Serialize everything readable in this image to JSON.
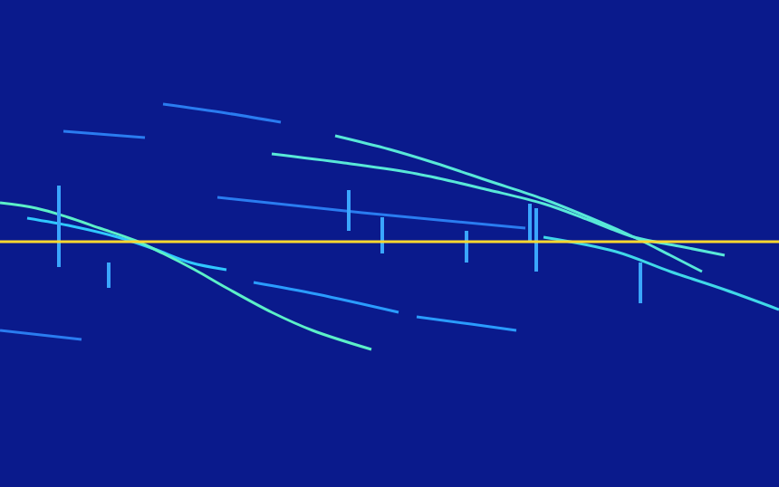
{
  "chart_data": {
    "type": "line",
    "tick_labels": false,
    "grid": false,
    "xlim": [
      0,
      860
    ],
    "ylim": [
      538,
      0
    ],
    "series": [
      {
        "color": "#2a7cf0",
        "x": [
          70,
          160
        ],
        "values": [
          145,
          152
        ]
      },
      {
        "color": "#2a7cf0",
        "x": [
          180,
          250,
          310
        ],
        "values": [
          115,
          125,
          135
        ]
      },
      {
        "color": "#2a7cf0",
        "x": [
          240,
          400,
          580
        ],
        "values": [
          218,
          235,
          252
        ]
      },
      {
        "color": "#2a7cf0",
        "x": [
          0,
          90
        ],
        "values": [
          365,
          375
        ]
      },
      {
        "color": "#30c8ff",
        "x": [
          30,
          80,
          130,
          170,
          210,
          250
        ],
        "values": [
          241,
          250,
          262,
          275,
          290,
          298
        ]
      },
      {
        "color": "#2a9cff",
        "x": [
          280,
          350,
          440
        ],
        "values": [
          312,
          325,
          345
        ]
      },
      {
        "color": "#2a9cff",
        "x": [
          460,
          520,
          570
        ],
        "values": [
          350,
          358,
          365
        ]
      },
      {
        "color": "#58e8d8",
        "x": [
          370,
          430,
          480,
          540,
          600,
          650,
          700,
          740,
          775
        ],
        "values": [
          150,
          165,
          180,
          200,
          220,
          240,
          262,
          282,
          300
        ]
      },
      {
        "color": "#58e8d8",
        "x": [
          300,
          380,
          460,
          540,
          600,
          650,
          700,
          750,
          800
        ],
        "values": [
          170,
          180,
          192,
          210,
          225,
          243,
          262,
          272,
          282
        ]
      },
      {
        "color": "#40d8e8",
        "x": [
          600,
          680,
          740,
          800,
          860
        ],
        "values": [
          262,
          278,
          300,
          320,
          342
        ]
      },
      {
        "color": "#5cf0c8",
        "x": [
          0,
          40,
          75,
          110,
          150,
          180,
          215,
          250,
          300,
          345,
          410
        ],
        "values": [
          224,
          230,
          240,
          252,
          266,
          280,
          298,
          318,
          345,
          365,
          386
        ]
      },
      {
        "color": "#3aa6ff",
        "x": [
          65,
          65
        ],
        "values": [
          205,
          295
        ]
      },
      {
        "color": "#3aa6ff",
        "x": [
          120,
          120
        ],
        "values": [
          290,
          318
        ]
      },
      {
        "color": "#3aa6ff",
        "x": [
          385,
          385
        ],
        "values": [
          210,
          255
        ]
      },
      {
        "color": "#3aa6ff",
        "x": [
          422,
          422
        ],
        "values": [
          240,
          280
        ]
      },
      {
        "color": "#3aa6ff",
        "x": [
          515,
          515
        ],
        "values": [
          255,
          290
        ]
      },
      {
        "color": "#3aa6ff",
        "x": [
          585,
          585
        ],
        "values": [
          225,
          268
        ]
      },
      {
        "color": "#3aa6ff",
        "x": [
          592,
          592
        ],
        "values": [
          230,
          300
        ]
      },
      {
        "color": "#3aa6ff",
        "x": [
          707,
          707
        ],
        "values": [
          290,
          335
        ]
      },
      {
        "color": "#ffd830",
        "x": [
          0,
          860
        ],
        "values": [
          267,
          267
        ]
      }
    ]
  }
}
